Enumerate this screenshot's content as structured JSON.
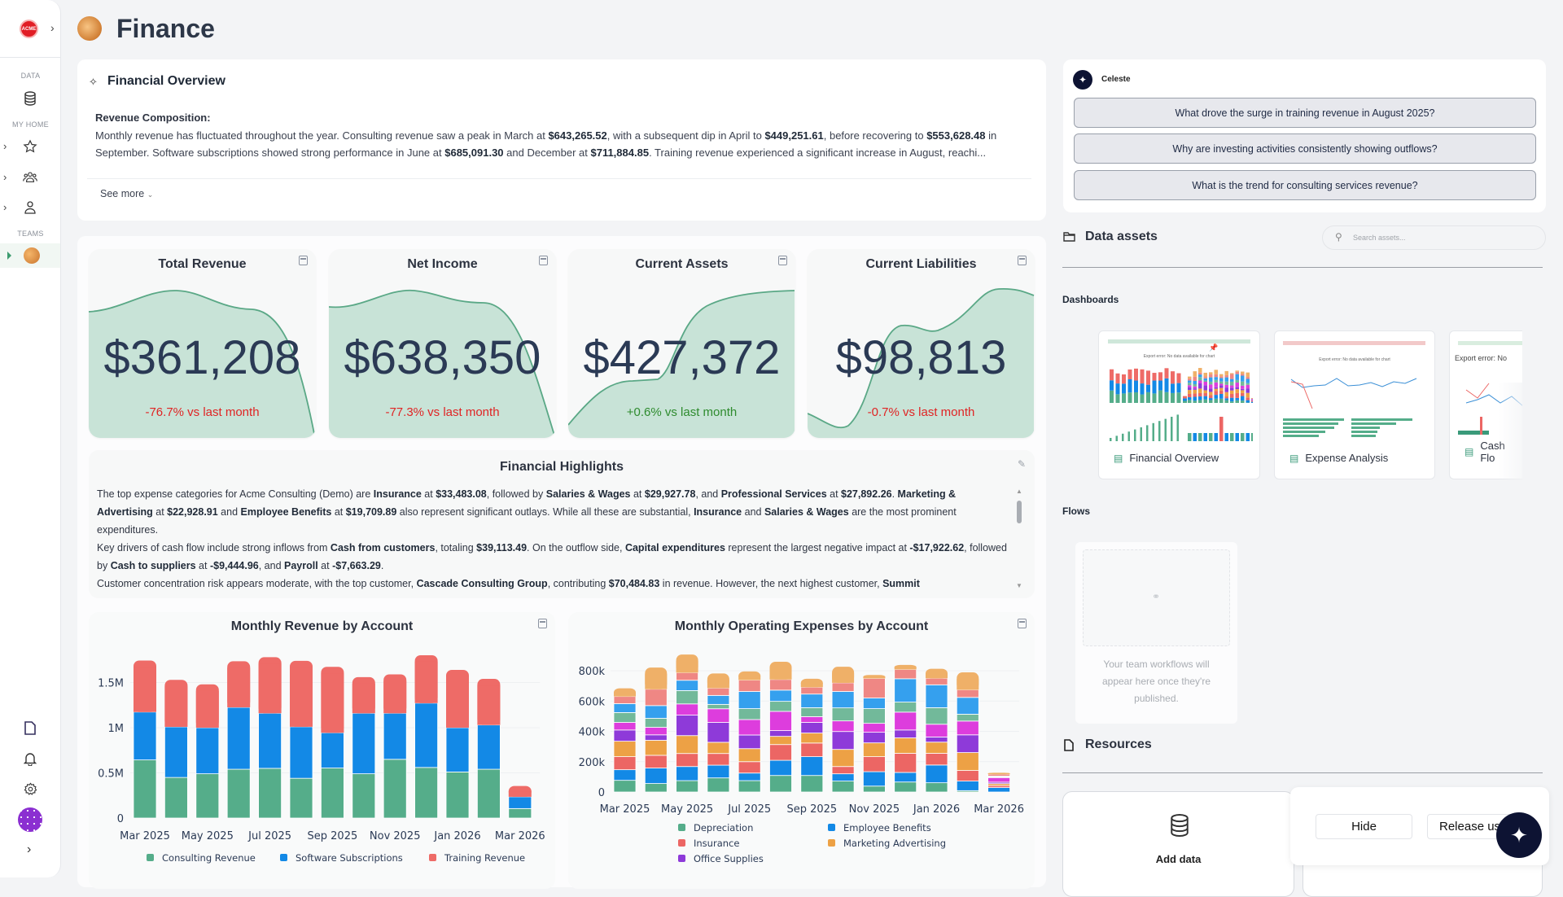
{
  "page": {
    "title": "Finance"
  },
  "sidebar": {
    "data_label": "DATA",
    "my_home_label": "MY HOME",
    "teams_label": "TEAMS",
    "logo_text": "ACME"
  },
  "overview": {
    "title": "Financial Overview",
    "heading": "Revenue Composition:",
    "segments": [
      {
        "t": "Monthly revenue has fluctuated throughout the year. Consulting revenue saw a peak in March at "
      },
      {
        "t": "$643,265.52",
        "b": true
      },
      {
        "t": ", with a subsequent dip in April to "
      },
      {
        "t": "$449,251.61",
        "b": true
      },
      {
        "t": ", before recovering to "
      },
      {
        "t": "$553,628.48",
        "b": true
      },
      {
        "t": " in September. Software subscriptions showed strong performance in June at "
      },
      {
        "t": "$685,091.30",
        "b": true
      },
      {
        "t": " and December at "
      },
      {
        "t": "$711,884.85",
        "b": true
      },
      {
        "t": ". Training revenue experienced a significant increase in August, reachi..."
      }
    ],
    "see_more": "See more"
  },
  "kpis": [
    {
      "title": "Total Revenue",
      "value": "$361,208",
      "change": "-76.7% vs last month",
      "trend": "down"
    },
    {
      "title": "Net Income",
      "value": "$638,350",
      "change": "-77.3% vs last month",
      "trend": "down"
    },
    {
      "title": "Current Assets",
      "value": "$427,372",
      "change": "+0.6% vs last month",
      "trend": "up"
    },
    {
      "title": "Current Liabilities",
      "value": "$98,813",
      "change": "-0.7% vs last month",
      "trend": "down"
    }
  ],
  "highlights": {
    "title": "Financial Highlights",
    "paragraphs": [
      [
        {
          "t": "The top expense categories for Acme Consulting (Demo) are "
        },
        {
          "t": "Insurance",
          "b": true
        },
        {
          "t": " at "
        },
        {
          "t": "$33,483.08",
          "b": true
        },
        {
          "t": ", followed by "
        },
        {
          "t": "Salaries & Wages",
          "b": true
        },
        {
          "t": " at "
        },
        {
          "t": "$29,927.78",
          "b": true
        },
        {
          "t": ", and "
        },
        {
          "t": "Professional Services",
          "b": true
        },
        {
          "t": " at "
        },
        {
          "t": "$27,892.26",
          "b": true
        },
        {
          "t": ". "
        },
        {
          "t": "Marketing & Advertising",
          "b": true
        },
        {
          "t": " at "
        },
        {
          "t": "$22,928.91",
          "b": true
        },
        {
          "t": " and "
        },
        {
          "t": "Employee Benefits",
          "b": true
        },
        {
          "t": " at "
        },
        {
          "t": "$19,709.89",
          "b": true
        },
        {
          "t": " also represent significant outlays. While all these are substantial, "
        },
        {
          "t": "Insurance",
          "b": true
        },
        {
          "t": " and "
        },
        {
          "t": "Salaries & Wages",
          "b": true
        },
        {
          "t": " are the most prominent expenditures."
        }
      ],
      [
        {
          "t": "Key drivers of cash flow include strong inflows from "
        },
        {
          "t": "Cash from customers",
          "b": true
        },
        {
          "t": ", totaling "
        },
        {
          "t": "$39,113.49",
          "b": true
        },
        {
          "t": ". On the outflow side, "
        },
        {
          "t": "Capital expenditures",
          "b": true
        },
        {
          "t": " represent the largest negative impact at "
        },
        {
          "t": "-$17,922.62",
          "b": true
        },
        {
          "t": ", followed by "
        },
        {
          "t": "Cash to suppliers",
          "b": true
        },
        {
          "t": " at "
        },
        {
          "t": "-$9,444.96",
          "b": true
        },
        {
          "t": ", and "
        },
        {
          "t": "Payroll",
          "b": true
        },
        {
          "t": " at "
        },
        {
          "t": "-$7,663.29",
          "b": true
        },
        {
          "t": "."
        }
      ],
      [
        {
          "t": "Customer concentration risk appears moderate, with the top customer, "
        },
        {
          "t": "Cascade Consulting Group",
          "b": true
        },
        {
          "t": ", contributing "
        },
        {
          "t": "$70,484.83",
          "b": true
        },
        {
          "t": " in revenue. However, the next highest customer, "
        },
        {
          "t": "Summit",
          "b": true
        }
      ]
    ]
  },
  "chart_data": [
    {
      "type": "bar",
      "stacked": true,
      "title": "Monthly Revenue by Account",
      "categories": [
        "Mar 2025",
        "Apr 2025",
        "May 2025",
        "Jun 2025",
        "Jul 2025",
        "Aug 2025",
        "Sep 2025",
        "Oct 2025",
        "Nov 2025",
        "Dec 2025",
        "Jan 2026",
        "Feb 2026",
        "Mar 2026"
      ],
      "x_tick_labels": [
        "Mar 2025",
        "May 2025",
        "Jul 2025",
        "Sep 2025",
        "Nov 2025",
        "Jan 2026",
        "Mar 2026"
      ],
      "y_tick_labels": [
        "0",
        "0.5M",
        "1M",
        "1.5M"
      ],
      "y_ticks": [
        0,
        500000,
        1000000,
        1500000
      ],
      "ylim": [
        0,
        1850000
      ],
      "legend": "bottom",
      "series": [
        {
          "name": "Consulting Revenue",
          "color": "#55ad8a",
          "values": [
            643266,
            449252,
            490000,
            540000,
            550000,
            440000,
            553628,
            490000,
            650000,
            560000,
            510000,
            540000,
            105000
          ]
        },
        {
          "name": "Software Subscriptions",
          "color": "#1389e6",
          "values": [
            530000,
            560000,
            510000,
            685091,
            610000,
            570000,
            390000,
            670000,
            510000,
            711885,
            490000,
            490000,
            130000
          ]
        },
        {
          "name": "Training Revenue",
          "color": "#ee6b67",
          "values": [
            570000,
            520000,
            480000,
            510000,
            620000,
            730000,
            730000,
            400000,
            430000,
            530000,
            640000,
            510000,
            120000
          ]
        }
      ]
    },
    {
      "type": "bar",
      "stacked": true,
      "title": "Monthly Operating Expenses by Account",
      "categories": [
        "Mar 2025",
        "Apr 2025",
        "May 2025",
        "Jun 2025",
        "Jul 2025",
        "Aug 2025",
        "Sep 2025",
        "Oct 2025",
        "Nov 2025",
        "Dec 2025",
        "Jan 2026",
        "Feb 2026",
        "Mar 2026"
      ],
      "x_tick_labels": [
        "Mar 2025",
        "May 2025",
        "Jul 2025",
        "Sep 2025",
        "Nov 2025",
        "Jan 2026",
        "Mar 2026"
      ],
      "y_tick_labels": [
        "0",
        "200k",
        "400k",
        "600k",
        "800k"
      ],
      "y_ticks": [
        0,
        200000,
        400000,
        600000,
        800000
      ],
      "ylim": [
        0,
        950000
      ],
      "legend": "bottom",
      "series": [
        {
          "name": "Depreciation",
          "color": "#55ad8a",
          "values": [
            77000,
            56000,
            75000,
            93000,
            75000,
            109000,
            109000,
            72000,
            39000,
            66000,
            61000,
            9000,
            0
          ]
        },
        {
          "name": "Employee Benefits",
          "color": "#1389e6",
          "values": [
            70000,
            102000,
            93000,
            84000,
            50000,
            100000,
            124000,
            48000,
            95000,
            63000,
            117000,
            63000,
            29000
          ]
        },
        {
          "name": "Insurance",
          "color": "#ec6664",
          "values": [
            86000,
            84000,
            86000,
            77000,
            75000,
            104000,
            90000,
            48000,
            99000,
            126000,
            77000,
            70000,
            13000
          ]
        },
        {
          "name": "Marketing   Advertising",
          "color": "#eda145",
          "values": [
            102000,
            99000,
            118000,
            74000,
            86000,
            54000,
            66000,
            113000,
            91000,
            102000,
            74000,
            118000,
            13000
          ]
        },
        {
          "name": "Office Supplies",
          "color": "#8e3ad9",
          "values": [
            74000,
            36000,
            135000,
            131000,
            90000,
            38000,
            70000,
            118000,
            70000,
            52000,
            34000,
            117000,
            10000
          ]
        },
        {
          "color": "#dd3ddd",
          "values": [
            50000,
            50000,
            74000,
            90000,
            102000,
            127000,
            38000,
            70000,
            59000,
            118000,
            84000,
            91000,
            30000
          ]
        },
        {
          "color": "#72b99a",
          "values": [
            65000,
            59000,
            88000,
            29000,
            72000,
            66000,
            59000,
            86000,
            97000,
            66000,
            109000,
            45000,
            5000
          ]
        },
        {
          "color": "#35a0ee",
          "values": [
            59000,
            84000,
            68000,
            59000,
            113000,
            74000,
            90000,
            108000,
            70000,
            154000,
            151000,
            111000,
            5000
          ]
        },
        {
          "color": "#ef8784",
          "values": [
            47000,
            108000,
            50000,
            48000,
            75000,
            70000,
            45000,
            57000,
            129000,
            61000,
            43000,
            50000,
            12000
          ]
        },
        {
          "color": "#efb068",
          "values": [
            54000,
            143000,
            120000,
            97000,
            57000,
            117000,
            56000,
            106000,
            23000,
            30000,
            63000,
            115000,
            10000
          ]
        }
      ]
    }
  ],
  "assistant": {
    "name": "Celeste",
    "questions": [
      "What drove the surge in training revenue in August 2025?",
      "Why are investing activities consistently showing outflows?",
      "What is the trend for consulting services revenue?"
    ]
  },
  "data_assets": {
    "title": "Data assets",
    "search_placeholder": "Search assets...",
    "dashboards_label": "Dashboards",
    "dashboards": [
      {
        "name": "Financial Overview",
        "thumb_error": "Export error: No data available for chart"
      },
      {
        "name": "Expense Analysis",
        "thumb_error": "Export error: No data available for chart"
      },
      {
        "name": "Cash Flo",
        "thumb_error": "Export error: No"
      }
    ],
    "flows_label": "Flows",
    "flows_empty": "Your team workflows will appear here once they're published."
  },
  "resources": {
    "title": "Resources",
    "add_data": "Add data"
  },
  "popup": {
    "hide": "Hide",
    "release": "Release us"
  },
  "colors": {
    "positive": "#2e8b2e",
    "negative": "#e02424",
    "spark_fill": "#c8e3d7",
    "spark_line": "#5aa886",
    "navy": "#0d1333"
  }
}
